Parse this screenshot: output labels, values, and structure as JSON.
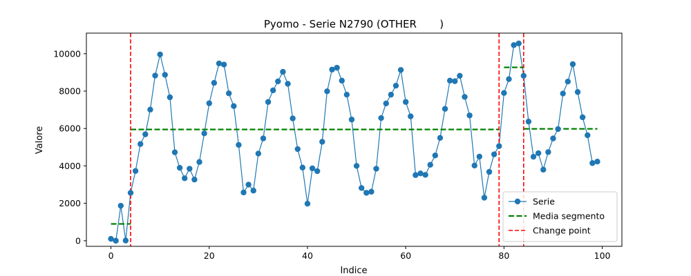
{
  "chart_data": {
    "type": "line",
    "title": "Pyomo - Serie N2790 (OTHER       )",
    "xlabel": "Indice",
    "ylabel": "Valore",
    "xlim": [
      -5,
      104
    ],
    "ylim": [
      -300,
      11100
    ],
    "xticks": [
      0,
      20,
      40,
      60,
      80,
      100
    ],
    "yticks": [
      0,
      2000,
      4000,
      6000,
      8000,
      10000
    ],
    "grid": false,
    "legend_position": "bottom-right",
    "series": [
      {
        "name": "Serie",
        "color": "#1f77b4",
        "x": [
          0,
          1,
          2,
          3,
          4,
          5,
          6,
          7,
          8,
          9,
          10,
          11,
          12,
          13,
          14,
          15,
          16,
          17,
          18,
          19,
          20,
          21,
          22,
          23,
          24,
          25,
          26,
          27,
          28,
          29,
          30,
          31,
          32,
          33,
          34,
          35,
          36,
          37,
          38,
          39,
          40,
          41,
          42,
          43,
          44,
          45,
          46,
          47,
          48,
          49,
          50,
          51,
          52,
          53,
          54,
          55,
          56,
          57,
          58,
          59,
          60,
          61,
          62,
          63,
          64,
          65,
          66,
          67,
          68,
          69,
          70,
          71,
          72,
          73,
          74,
          75,
          76,
          77,
          78,
          79,
          80,
          81,
          82,
          83,
          84,
          85,
          86,
          87,
          88,
          89,
          90,
          91,
          92,
          93,
          94,
          95,
          96,
          97,
          98,
          99
        ],
        "y": [
          100,
          0,
          1870,
          10,
          2560,
          3730,
          5170,
          5690,
          7010,
          8830,
          9960,
          8870,
          7670,
          4730,
          3900,
          3340,
          3850,
          3270,
          4210,
          5740,
          7350,
          8440,
          9480,
          9420,
          7880,
          7200,
          5120,
          2580,
          3000,
          2680,
          4660,
          5470,
          7420,
          8040,
          8520,
          9030,
          8390,
          6540,
          4900,
          3910,
          1980,
          3870,
          3720,
          5290,
          7990,
          9150,
          9250,
          8560,
          7810,
          6480,
          4000,
          2820,
          2560,
          2620,
          3850,
          6560,
          7340,
          7810,
          8290,
          9130,
          7420,
          6650,
          3510,
          3600,
          3520,
          4060,
          4560,
          5500,
          7050,
          8560,
          8530,
          8820,
          7690,
          6700,
          4020,
          4500,
          2300,
          3680,
          4620,
          5060,
          7900,
          8640,
          10460,
          10550,
          8820,
          6370,
          4490,
          4680,
          3800,
          4740,
          5470,
          5970,
          7870,
          8510,
          9440,
          7950,
          6600,
          5640,
          4150,
          4230
        ]
      },
      {
        "name": "Media segmento",
        "color": "#008000",
        "segments": [
          {
            "x": [
              0,
              4
            ],
            "y": 900
          },
          {
            "x": [
              4,
              79
            ],
            "y": 5950
          },
          {
            "x": [
              80,
              84
            ],
            "y": 9270
          },
          {
            "x": [
              84,
              99
            ],
            "y": 5980
          }
        ]
      },
      {
        "name": "Change point",
        "color": "#ff0000",
        "x_values": [
          4,
          79,
          84
        ]
      }
    ]
  }
}
